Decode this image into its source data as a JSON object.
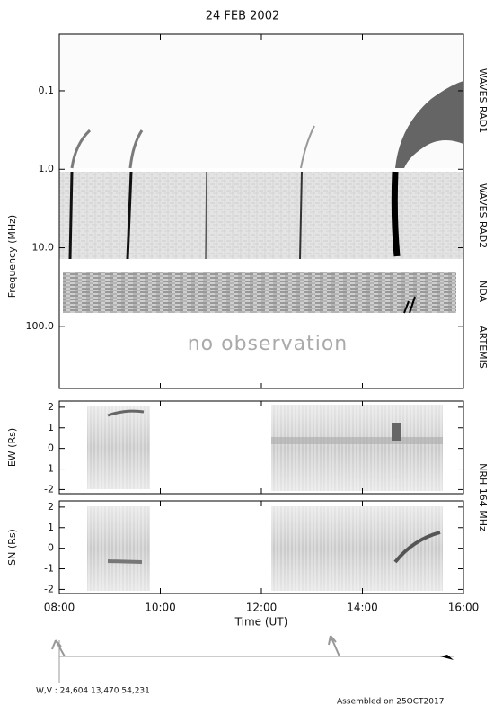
{
  "chart_data": [
    {
      "type": "spectrogram",
      "title": "24 FEB 2002",
      "ylabel": "Frequency (MHz)",
      "log": true,
      "ylim": [
        620,
        0.019
      ],
      "yticks": [
        0.1,
        {
          "value": 1,
          "label": "1.0"
        },
        {
          "value": 10,
          "label": "10.0"
        },
        {
          "value": 100,
          "label": "100.0"
        }
      ],
      "bands": [
        "WAVES RAD1",
        "WAVES RAD2",
        "NDA",
        "ARTEMIS"
      ],
      "annotation": "no observation"
    },
    {
      "type": "heatmap",
      "ylabel": "EW (Rs)",
      "ylim": [
        -2.2,
        2.3
      ],
      "yticks": [
        -2,
        -1,
        0,
        1,
        2
      ],
      "side_label": "NRH 164 MHz"
    },
    {
      "type": "heatmap",
      "ylabel": "SN (Rs)",
      "ylim": [
        -2.2,
        2.3
      ],
      "yticks": [
        -2,
        -1,
        0,
        1,
        2
      ],
      "xlabel": "Time (UT)",
      "xlim": [
        8,
        16
      ],
      "xticks": [
        {
          "value": 8,
          "label": "08:00"
        },
        {
          "value": 10,
          "label": "10:00"
        },
        {
          "value": 12,
          "label": "12:00"
        },
        {
          "value": 14,
          "label": "14:00"
        },
        {
          "value": 16,
          "label": "16:00"
        }
      ]
    }
  ],
  "footer": {
    "wv": "W,V :  24,604   13,470   54,231",
    "assembled": "Assembled on 25OCT2017"
  }
}
